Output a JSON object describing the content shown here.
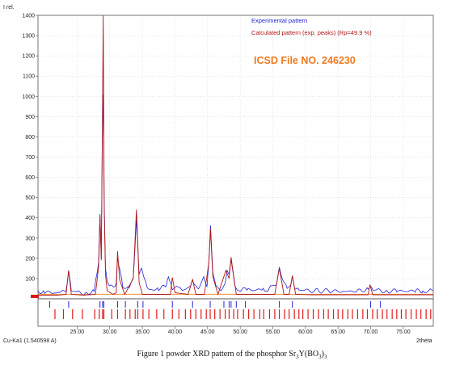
{
  "chart_data": {
    "type": "line",
    "ylabel": "I rel.",
    "xlabel": "2theta",
    "xlim": [
      19.0,
      79.6
    ],
    "ylim": [
      0,
      1400
    ],
    "y_ticks": [
      "100",
      "200",
      "300",
      "400",
      "500",
      "600",
      "700",
      "800",
      "900",
      "1000",
      "1100",
      "1200",
      "1300",
      "1400"
    ],
    "x_ticks": [
      "25.00",
      "30.00",
      "35.00",
      "40.00",
      "45.00",
      "50.00",
      "55.00",
      "60.00",
      "65.00",
      "70.00",
      "75.00"
    ],
    "grid": true,
    "legend_position": "top-center",
    "series": [
      {
        "name": "Experimental pattern",
        "color": "#2323d8",
        "x": [
          19.0,
          20.0,
          21.5,
          22.5,
          23.3,
          23.7,
          24.1,
          25.0,
          26.5,
          27.6,
          28.0,
          28.3,
          28.5,
          28.7,
          28.85,
          29.0,
          29.15,
          29.35,
          29.6,
          30.0,
          30.6,
          31.0,
          31.2,
          31.5,
          32.0,
          33.0,
          33.6,
          34.1,
          34.3,
          34.5,
          34.9,
          35.3,
          35.7,
          36.3,
          37.5,
          38.7,
          39.0,
          39.3,
          39.6,
          40.5,
          41.3,
          42.4,
          42.7,
          43.0,
          43.6,
          44.0,
          44.4,
          44.9,
          45.2,
          45.45,
          45.8,
          46.3,
          47.2,
          47.7,
          48.0,
          48.3,
          48.6,
          49.2,
          50.0,
          51.2,
          52.5,
          53.5,
          54.2,
          54.8,
          55.6,
          56.0,
          56.6,
          57.2,
          57.8,
          58.0,
          58.4,
          59.0,
          60.0,
          62.0,
          64.0,
          66.0,
          68.0,
          69.6,
          69.9,
          70.3,
          71.0,
          72.5,
          74.0,
          75.5,
          77.0,
          78.0,
          78.8,
          79.3,
          79.6
        ],
        "values": [
          40,
          32,
          30,
          28,
          40,
          145,
          42,
          28,
          30,
          40,
          120,
          175,
          420,
          200,
          780,
          1000,
          480,
          150,
          95,
          55,
          60,
          80,
          210,
          140,
          60,
          55,
          110,
          380,
          260,
          120,
          160,
          90,
          60,
          45,
          50,
          60,
          110,
          80,
          55,
          48,
          45,
          62,
          105,
          60,
          50,
          75,
          120,
          50,
          180,
          360,
          140,
          55,
          45,
          75,
          150,
          115,
          190,
          60,
          45,
          45,
          42,
          50,
          45,
          60,
          70,
          155,
          95,
          48,
          70,
          110,
          55,
          42,
          40,
          40,
          38,
          36,
          38,
          48,
          70,
          45,
          40,
          40,
          38,
          38,
          38,
          40,
          40,
          50,
          42
        ]
      },
      {
        "name": "Calculated pattern (exp. peaks) (Rp=49.9 %)",
        "color": "#b01818",
        "x": [
          19.0,
          22.0,
          23.3,
          23.7,
          24.1,
          26.0,
          27.8,
          28.3,
          28.5,
          28.7,
          28.85,
          29.0,
          29.15,
          29.35,
          29.6,
          30.5,
          31.0,
          31.2,
          31.5,
          32.3,
          33.6,
          34.1,
          34.3,
          34.5,
          35.0,
          35.5,
          37.0,
          39.3,
          39.6,
          40.0,
          42.0,
          42.7,
          43.2,
          44.5,
          45.2,
          45.45,
          45.8,
          46.6,
          47.8,
          48.3,
          48.6,
          49.4,
          51.0,
          55.3,
          56.0,
          56.7,
          57.5,
          58.0,
          58.5,
          61.0,
          65.0,
          69.6,
          69.9,
          70.3,
          73.0,
          77.0,
          79.6
        ],
        "values": [
          18,
          18,
          22,
          140,
          22,
          18,
          22,
          160,
          410,
          190,
          760,
          1400,
          450,
          120,
          40,
          22,
          30,
          235,
          95,
          22,
          100,
          440,
          270,
          80,
          22,
          22,
          22,
          22,
          105,
          30,
          22,
          95,
          22,
          22,
          180,
          345,
          110,
          22,
          140,
          100,
          205,
          22,
          22,
          22,
          150,
          22,
          22,
          115,
          22,
          20,
          20,
          20,
          70,
          20,
          20,
          20,
          20
        ]
      }
    ],
    "annotations": [
      "ICSD File NO. 246230"
    ],
    "footer_left": "Cu-Ka1 (1.540598 A)",
    "caption": "Figure 1 powder XRD pattern of the phosphor Sr3Y(BO3)3",
    "caption_parts": [
      "Figure 1 powder XRD pattern of the phosphor Sr",
      "3",
      "Y(BO",
      "3",
      ")",
      "3"
    ],
    "reference_blue_positions": [
      20.8,
      23.7,
      28.5,
      28.9,
      29.1,
      31.2,
      32.4,
      34.3,
      35.1,
      39.6,
      42.7,
      45.4,
      47.5,
      48.3,
      48.6,
      49.4,
      50.8,
      56.0,
      58.0,
      70.0,
      71.5
    ],
    "reference_red_positions": [
      21.6,
      22.9,
      24.3,
      25.8,
      27.7,
      28.4,
      28.9,
      29.1,
      30.3,
      31.2,
      32.4,
      33.1,
      33.9,
      34.3,
      35.1,
      36.0,
      37.2,
      38.3,
      39.6,
      40.6,
      41.6,
      42.4,
      43.2,
      44.0,
      44.8,
      45.4,
      46.1,
      46.9,
      47.7,
      48.3,
      49.0,
      49.6,
      50.5,
      51.3,
      52.1,
      53.0,
      53.6,
      54.5,
      55.3,
      56.0,
      56.8,
      57.5,
      58.3,
      59.0,
      59.6,
      60.4,
      61.2,
      62.0,
      62.8,
      63.5,
      64.3,
      65.0,
      65.7,
      66.5,
      67.2,
      68.0,
      68.8,
      69.5,
      70.3,
      71.0,
      71.8,
      72.5,
      73.3,
      74.0,
      74.7,
      75.4,
      76.2,
      77.0,
      77.7,
      78.5,
      79.2
    ]
  }
}
